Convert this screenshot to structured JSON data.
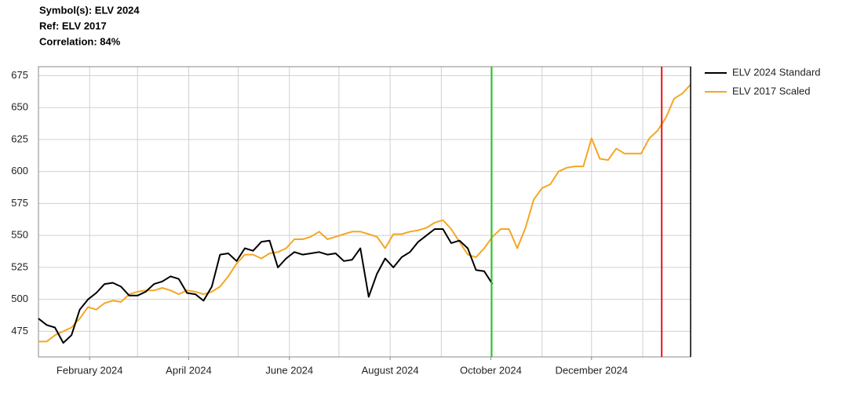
{
  "chart_data": {
    "type": "line",
    "title": "Symbol(s): ELV 2024",
    "subtitle": "Ref: ELV 2017",
    "annotation": "Correlation: 84%",
    "xlim": [
      0,
      79
    ],
    "xticks": [
      {
        "value": 6.2,
        "label": "February 2024"
      },
      {
        "value": 18.2,
        "label": "April 2024"
      },
      {
        "value": 30.4,
        "label": "June 2024"
      },
      {
        "value": 42.6,
        "label": "August 2024"
      },
      {
        "value": 54.8,
        "label": "October 2024"
      },
      {
        "value": 67,
        "label": "December 2024"
      }
    ],
    "xgrid": [
      0,
      6.2,
      12,
      18.2,
      24.2,
      30.4,
      36.4,
      42.6,
      48.8,
      54.8,
      61,
      67,
      73.2
    ],
    "ylim": [
      455,
      682
    ],
    "yticks": [
      475,
      500,
      525,
      550,
      575,
      600,
      625,
      650,
      675
    ],
    "grid": true,
    "legend": "right",
    "vlines": [
      {
        "value": 54.9,
        "color": "#22cc22"
      },
      {
        "value": 75.5,
        "color": "#ee1111"
      }
    ],
    "series": [
      {
        "name": "ELV 2024 Standard",
        "color": "#000000",
        "values": [
          485,
          480,
          478,
          466,
          472,
          492,
          500,
          505,
          512,
          513,
          510,
          503,
          503,
          506,
          512,
          514,
          518,
          516,
          505,
          504,
          499,
          510,
          535,
          536,
          530,
          540,
          538,
          545,
          546,
          525,
          532,
          537,
          535,
          536,
          537,
          535,
          536,
          530,
          531,
          540,
          502,
          520,
          532,
          525,
          533,
          537,
          545,
          550,
          555,
          555,
          544,
          546,
          540,
          523,
          522,
          512,
          null,
          null,
          null,
          null,
          null,
          null,
          null,
          null,
          null,
          null,
          null,
          null,
          null,
          null,
          null,
          null,
          null,
          null,
          null,
          null,
          null,
          null,
          null,
          null
        ]
      },
      {
        "name": "ELV 2017 Scaled",
        "color": "#f5a623",
        "values": [
          467,
          467,
          472,
          475,
          478,
          485,
          494,
          492,
          497,
          499,
          498,
          504,
          506,
          507,
          507,
          509,
          507,
          504,
          507,
          506,
          504,
          506,
          510,
          518,
          528,
          535,
          535,
          532,
          536,
          537,
          540,
          547,
          547,
          549,
          553,
          547,
          549,
          551,
          553,
          553,
          551,
          549,
          540,
          551,
          551,
          553,
          554,
          556,
          560,
          562,
          555,
          545,
          535,
          533,
          540,
          549,
          555,
          555,
          540,
          556,
          578,
          587,
          590,
          600,
          603,
          604,
          604,
          626,
          610,
          609,
          618,
          614,
          614,
          614,
          626,
          632,
          642,
          657,
          661,
          668
        ]
      }
    ]
  }
}
